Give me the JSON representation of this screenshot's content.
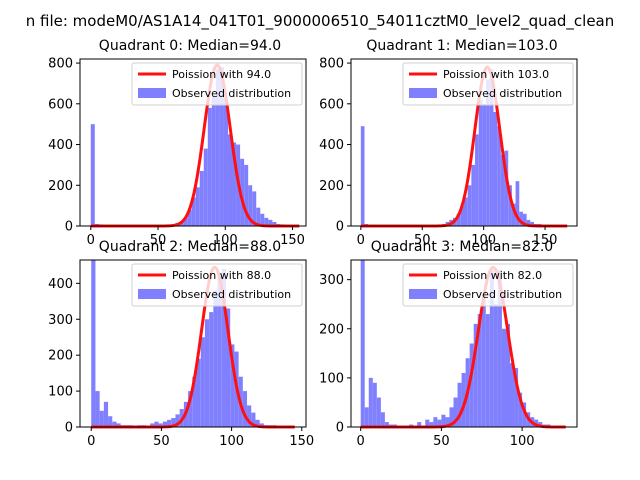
{
  "suptitle": "n file: modeM0/AS1A14_041T01_9000006510_54011cztM0_level2_quad_clean",
  "colors": {
    "hist": "#8080ff",
    "fit": "#ff1010",
    "axis": "#000000",
    "background": "#ffffff"
  },
  "chart_data": [
    {
      "type": "bar",
      "title": "Quadrant 0: Median=94.0",
      "median": 94.0,
      "legend": {
        "location": "upper-right",
        "entries": [
          "Poission with 94.0",
          "Observed distribution"
        ]
      },
      "xlim": [
        -8,
        160
      ],
      "ylim": [
        0,
        820
      ],
      "xticks": [
        0,
        50,
        100,
        150
      ],
      "xticklabels": [
        "0",
        "50",
        "100",
        "150"
      ],
      "yticks": [
        0,
        200,
        400,
        600,
        800
      ],
      "yticklabels": [
        "0",
        "200",
        "400",
        "600",
        "800"
      ],
      "bin_width": 3,
      "bins": [
        {
          "x": 0,
          "y": 500
        },
        {
          "x": 3,
          "y": 10
        },
        {
          "x": 6,
          "y": 8
        },
        {
          "x": 9,
          "y": 5
        },
        {
          "x": 57,
          "y": 5
        },
        {
          "x": 60,
          "y": 10
        },
        {
          "x": 63,
          "y": 15
        },
        {
          "x": 66,
          "y": 20
        },
        {
          "x": 69,
          "y": 40
        },
        {
          "x": 72,
          "y": 80
        },
        {
          "x": 75,
          "y": 140
        },
        {
          "x": 78,
          "y": 190
        },
        {
          "x": 81,
          "y": 270
        },
        {
          "x": 84,
          "y": 380
        },
        {
          "x": 87,
          "y": 580
        },
        {
          "x": 90,
          "y": 640
        },
        {
          "x": 93,
          "y": 770
        },
        {
          "x": 96,
          "y": 780
        },
        {
          "x": 99,
          "y": 630
        },
        {
          "x": 102,
          "y": 450
        },
        {
          "x": 105,
          "y": 410
        },
        {
          "x": 108,
          "y": 400
        },
        {
          "x": 111,
          "y": 330
        },
        {
          "x": 114,
          "y": 300
        },
        {
          "x": 117,
          "y": 200
        },
        {
          "x": 120,
          "y": 170
        },
        {
          "x": 123,
          "y": 90
        },
        {
          "x": 126,
          "y": 60
        },
        {
          "x": 129,
          "y": 40
        },
        {
          "x": 132,
          "y": 30
        },
        {
          "x": 135,
          "y": 20
        },
        {
          "x": 138,
          "y": 10
        },
        {
          "x": 141,
          "y": 8
        },
        {
          "x": 144,
          "y": 5
        },
        {
          "x": 147,
          "y": 5
        }
      ],
      "fit": {
        "mean": 94.0,
        "peak": 790,
        "x_range": [
          0,
          155
        ]
      }
    },
    {
      "type": "bar",
      "title": "Quadrant 1: Median=103.0",
      "median": 103.0,
      "legend": {
        "location": "upper-right",
        "entries": [
          "Poission with 103.0",
          "Observed distribution"
        ]
      },
      "xlim": [
        -8,
        176
      ],
      "ylim": [
        0,
        820
      ],
      "xticks": [
        0,
        50,
        100,
        150
      ],
      "xticklabels": [
        "0",
        "50",
        "100",
        "150"
      ],
      "yticks": [
        0,
        200,
        400,
        600,
        800
      ],
      "yticklabels": [
        "0",
        "200",
        "400",
        "600",
        "800"
      ],
      "bin_width": 3,
      "bins": [
        {
          "x": 0,
          "y": 490
        },
        {
          "x": 3,
          "y": 10
        },
        {
          "x": 6,
          "y": 5
        },
        {
          "x": 63,
          "y": 5
        },
        {
          "x": 66,
          "y": 10
        },
        {
          "x": 69,
          "y": 20
        },
        {
          "x": 72,
          "y": 30
        },
        {
          "x": 75,
          "y": 40
        },
        {
          "x": 78,
          "y": 60
        },
        {
          "x": 81,
          "y": 100
        },
        {
          "x": 84,
          "y": 140
        },
        {
          "x": 87,
          "y": 200
        },
        {
          "x": 90,
          "y": 300
        },
        {
          "x": 93,
          "y": 450
        },
        {
          "x": 96,
          "y": 620
        },
        {
          "x": 99,
          "y": 600
        },
        {
          "x": 102,
          "y": 720
        },
        {
          "x": 105,
          "y": 770
        },
        {
          "x": 108,
          "y": 560
        },
        {
          "x": 111,
          "y": 490
        },
        {
          "x": 114,
          "y": 350
        },
        {
          "x": 117,
          "y": 370
        },
        {
          "x": 120,
          "y": 200
        },
        {
          "x": 123,
          "y": 110
        },
        {
          "x": 126,
          "y": 220
        },
        {
          "x": 129,
          "y": 70
        },
        {
          "x": 132,
          "y": 60
        },
        {
          "x": 135,
          "y": 30
        },
        {
          "x": 138,
          "y": 20
        },
        {
          "x": 141,
          "y": 10
        },
        {
          "x": 144,
          "y": 10
        },
        {
          "x": 147,
          "y": 5
        },
        {
          "x": 150,
          "y": 5
        }
      ],
      "fit": {
        "mean": 103.0,
        "peak": 780,
        "x_range": [
          0,
          168
        ]
      }
    },
    {
      "type": "bar",
      "title": "Quadrant 2: Median=88.0",
      "median": 88.0,
      "legend": {
        "location": "upper-right",
        "entries": [
          "Poission with 88.0",
          "Observed distribution"
        ]
      },
      "xlim": [
        -8,
        153
      ],
      "ylim": [
        0,
        465
      ],
      "xticks": [
        0,
        50,
        100,
        150
      ],
      "xticklabels": [
        "0",
        "50",
        "100",
        "150"
      ],
      "yticks": [
        0,
        100,
        200,
        300,
        400
      ],
      "yticklabels": [
        "0",
        "100",
        "200",
        "300",
        "400"
      ],
      "bin_width": 3,
      "bins": [
        {
          "x": 0,
          "y": 465
        },
        {
          "x": 3,
          "y": 100
        },
        {
          "x": 6,
          "y": 45
        },
        {
          "x": 9,
          "y": 70
        },
        {
          "x": 12,
          "y": 30
        },
        {
          "x": 15,
          "y": 15
        },
        {
          "x": 18,
          "y": 10
        },
        {
          "x": 21,
          "y": 5
        },
        {
          "x": 24,
          "y": 5
        },
        {
          "x": 27,
          "y": 5
        },
        {
          "x": 33,
          "y": 5
        },
        {
          "x": 36,
          "y": 5
        },
        {
          "x": 42,
          "y": 10
        },
        {
          "x": 45,
          "y": 15
        },
        {
          "x": 48,
          "y": 10
        },
        {
          "x": 51,
          "y": 15
        },
        {
          "x": 54,
          "y": 20
        },
        {
          "x": 57,
          "y": 25
        },
        {
          "x": 60,
          "y": 35
        },
        {
          "x": 63,
          "y": 50
        },
        {
          "x": 66,
          "y": 70
        },
        {
          "x": 69,
          "y": 100
        },
        {
          "x": 72,
          "y": 140
        },
        {
          "x": 75,
          "y": 190
        },
        {
          "x": 78,
          "y": 250
        },
        {
          "x": 81,
          "y": 300
        },
        {
          "x": 84,
          "y": 320
        },
        {
          "x": 87,
          "y": 380
        },
        {
          "x": 90,
          "y": 420
        },
        {
          "x": 93,
          "y": 440
        },
        {
          "x": 96,
          "y": 330
        },
        {
          "x": 99,
          "y": 230
        },
        {
          "x": 102,
          "y": 210
        },
        {
          "x": 105,
          "y": 140
        },
        {
          "x": 108,
          "y": 100
        },
        {
          "x": 111,
          "y": 60
        },
        {
          "x": 114,
          "y": 40
        },
        {
          "x": 117,
          "y": 20
        },
        {
          "x": 120,
          "y": 10
        },
        {
          "x": 123,
          "y": 5
        },
        {
          "x": 126,
          "y": 5
        },
        {
          "x": 129,
          "y": 5
        }
      ],
      "fit": {
        "mean": 88.0,
        "peak": 445,
        "x_range": [
          0,
          145
        ]
      }
    },
    {
      "type": "bar",
      "title": "Quadrant 3: Median=82.0",
      "median": 82.0,
      "legend": {
        "location": "upper-right",
        "entries": [
          "Poission with 82.0",
          "Observed distribution"
        ]
      },
      "xlim": [
        -6,
        134
      ],
      "ylim": [
        0,
        340
      ],
      "xticks": [
        0,
        50,
        100
      ],
      "xticklabels": [
        "0",
        "50",
        "100"
      ],
      "yticks": [
        0,
        100,
        200,
        300
      ],
      "yticklabels": [
        "0",
        "100",
        "200",
        "300"
      ],
      "bin_width": 2.5,
      "bins": [
        {
          "x": 0,
          "y": 340
        },
        {
          "x": 2.5,
          "y": 40
        },
        {
          "x": 5,
          "y": 100
        },
        {
          "x": 7.5,
          "y": 90
        },
        {
          "x": 10,
          "y": 60
        },
        {
          "x": 12.5,
          "y": 30
        },
        {
          "x": 15,
          "y": 10
        },
        {
          "x": 17.5,
          "y": 5
        },
        {
          "x": 20,
          "y": 5
        },
        {
          "x": 30,
          "y": 5
        },
        {
          "x": 35,
          "y": 10
        },
        {
          "x": 40,
          "y": 15
        },
        {
          "x": 42.5,
          "y": 10
        },
        {
          "x": 45,
          "y": 20
        },
        {
          "x": 47.5,
          "y": 15
        },
        {
          "x": 50,
          "y": 25
        },
        {
          "x": 52.5,
          "y": 20
        },
        {
          "x": 55,
          "y": 40
        },
        {
          "x": 57.5,
          "y": 60
        },
        {
          "x": 60,
          "y": 90
        },
        {
          "x": 62.5,
          "y": 110
        },
        {
          "x": 65,
          "y": 140
        },
        {
          "x": 67.5,
          "y": 170
        },
        {
          "x": 70,
          "y": 210
        },
        {
          "x": 72.5,
          "y": 230
        },
        {
          "x": 75,
          "y": 270
        },
        {
          "x": 77.5,
          "y": 230
        },
        {
          "x": 80,
          "y": 320
        },
        {
          "x": 82.5,
          "y": 250
        },
        {
          "x": 85,
          "y": 320
        },
        {
          "x": 87.5,
          "y": 200
        },
        {
          "x": 90,
          "y": 210
        },
        {
          "x": 92.5,
          "y": 130
        },
        {
          "x": 95,
          "y": 120
        },
        {
          "x": 97.5,
          "y": 70
        },
        {
          "x": 100,
          "y": 50
        },
        {
          "x": 102.5,
          "y": 30
        },
        {
          "x": 105,
          "y": 20
        },
        {
          "x": 107.5,
          "y": 15
        },
        {
          "x": 110,
          "y": 10
        },
        {
          "x": 112.5,
          "y": 5
        },
        {
          "x": 115,
          "y": 5
        }
      ],
      "fit": {
        "mean": 82.0,
        "peak": 325,
        "x_range": [
          0,
          127
        ]
      }
    }
  ]
}
